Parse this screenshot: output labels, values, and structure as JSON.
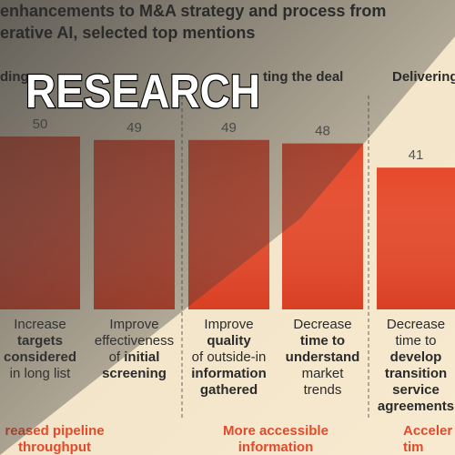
{
  "overlay_text": "RESEARCH",
  "chart_data": {
    "type": "bar",
    "title": [
      "enhancements to M&A strategy and process from",
      "erative AI, selected top mentions"
    ],
    "section_headers": [
      "ding",
      "ting the deal",
      "Delivering"
    ],
    "categories": [
      [
        [
          {
            "text": "Increase"
          }
        ],
        [
          {
            "text": "targets",
            "bold": true
          }
        ],
        [
          {
            "text": "considered",
            "bold": true
          }
        ],
        [
          {
            "text": "in long list"
          }
        ]
      ],
      [
        [
          {
            "text": "Improve"
          }
        ],
        [
          {
            "text": "effectiveness"
          }
        ],
        [
          {
            "text": "of "
          },
          {
            "text": "initial",
            "bold": true
          }
        ],
        [
          {
            "text": "screening",
            "bold": true
          }
        ]
      ],
      [
        [
          {
            "text": "Improve"
          }
        ],
        [
          {
            "text": "quality",
            "bold": true
          }
        ],
        [
          {
            "text": "of outside-in"
          }
        ],
        [
          {
            "text": "information",
            "bold": true
          }
        ],
        [
          {
            "text": "gathered",
            "bold": true
          }
        ]
      ],
      [
        [
          {
            "text": "Decrease"
          }
        ],
        [
          {
            "text": "time to",
            "bold": true
          }
        ],
        [
          {
            "text": "understand",
            "bold": true
          }
        ],
        [
          {
            "text": "market"
          }
        ],
        [
          {
            "text": "trends"
          }
        ]
      ],
      [
        [
          {
            "text": "Decrease"
          }
        ],
        [
          {
            "text": "time to"
          }
        ],
        [
          {
            "text": "develop",
            "bold": true
          }
        ],
        [
          {
            "text": "transition",
            "bold": true
          }
        ],
        [
          {
            "text": "service",
            "bold": true
          }
        ],
        [
          {
            "text": "agreements",
            "bold": true
          }
        ]
      ]
    ],
    "values": [
      50,
      49,
      49,
      48,
      41
    ],
    "color": "#e5492a",
    "ylim": [
      0,
      50
    ],
    "groups": [
      [
        "reased pipeline",
        "throughput"
      ],
      [
        "More accessible",
        "information"
      ],
      [
        "Acceler",
        "tim"
      ]
    ]
  }
}
